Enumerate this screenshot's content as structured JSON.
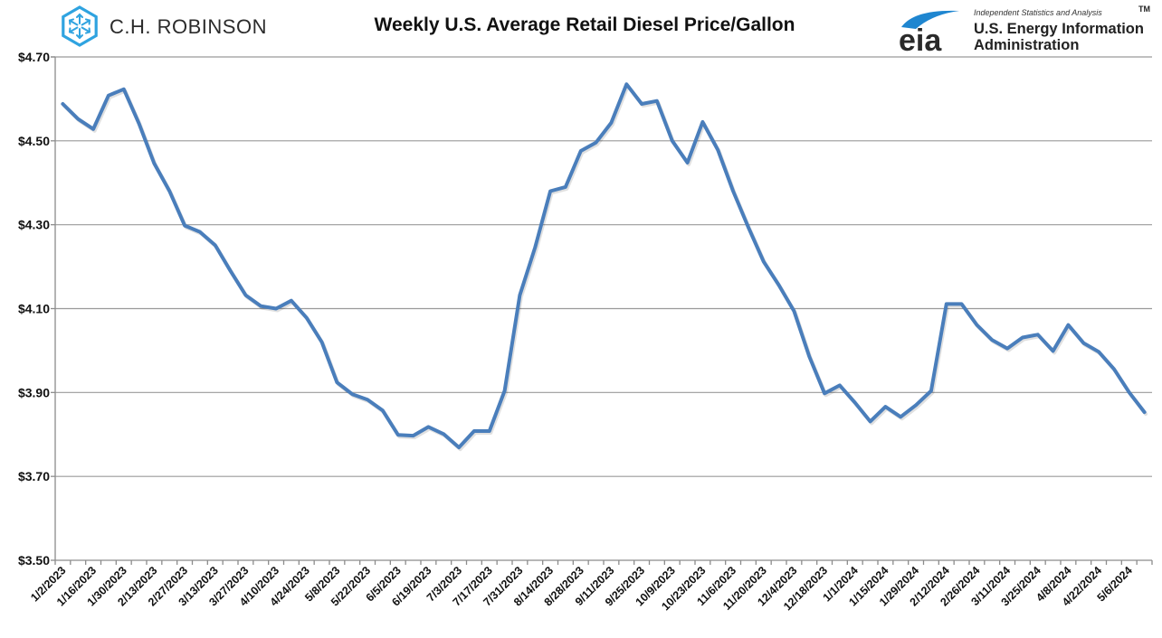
{
  "branding": {
    "left_logo_text": "C.H. ROBINSON",
    "left_logo_icon": "hexagon-arrows-icon",
    "left_logo_color": "#2fa3e0",
    "right_logo_mark": "eia",
    "right_logo_tagline": "Independent Statistics and Analysis",
    "right_logo_line1": "U.S. Energy Information",
    "right_logo_line2": "Administration",
    "right_logo_tm": "TM",
    "right_logo_arc_color": "#1f86d0"
  },
  "colors": {
    "series": "#4a7ebb",
    "grid": "#9a9a9a"
  },
  "chart_data": {
    "type": "line",
    "title": "Weekly U.S. Average Retail Diesel Price/Gallon",
    "xlabel": "",
    "ylabel": "",
    "ylim": [
      3.5,
      4.7
    ],
    "yticks": [
      3.5,
      3.7,
      3.9,
      4.1,
      4.3,
      4.5,
      4.7
    ],
    "ytick_labels": [
      "$3.50",
      "$3.70",
      "$3.90",
      "$4.10",
      "$4.30",
      "$4.50",
      "$4.70"
    ],
    "grid": true,
    "legend": "none",
    "x": [
      "1/2/2023",
      "1/9/2023",
      "1/16/2023",
      "1/23/2023",
      "1/30/2023",
      "2/6/2023",
      "2/13/2023",
      "2/20/2023",
      "2/27/2023",
      "3/6/2023",
      "3/13/2023",
      "3/20/2023",
      "3/27/2023",
      "4/3/2023",
      "4/10/2023",
      "4/17/2023",
      "4/24/2023",
      "5/1/2023",
      "5/8/2023",
      "5/15/2023",
      "5/22/2023",
      "5/29/2023",
      "6/5/2023",
      "6/12/2023",
      "6/19/2023",
      "6/26/2023",
      "7/3/2023",
      "7/10/2023",
      "7/17/2023",
      "7/24/2023",
      "7/31/2023",
      "8/7/2023",
      "8/14/2023",
      "8/21/2023",
      "8/28/2023",
      "9/4/2023",
      "9/11/2023",
      "9/18/2023",
      "9/25/2023",
      "10/2/2023",
      "10/9/2023",
      "10/16/2023",
      "10/23/2023",
      "10/30/2023",
      "11/6/2023",
      "11/13/2023",
      "11/20/2023",
      "11/27/2023",
      "12/4/2023",
      "12/11/2023",
      "12/18/2023",
      "12/25/2023",
      "1/1/2024",
      "1/8/2024",
      "1/15/2024",
      "1/22/2024",
      "1/29/2024",
      "2/5/2024",
      "2/12/2024",
      "2/19/2024",
      "2/26/2024",
      "3/4/2024",
      "3/11/2024",
      "3/18/2024",
      "3/25/2024",
      "4/1/2024",
      "4/8/2024",
      "4/15/2024",
      "4/22/2024",
      "4/29/2024",
      "5/6/2024",
      "5/13/2024"
    ],
    "xtick_labels": [
      "1/2/2023",
      "1/16/2023",
      "1/30/2023",
      "2/13/2023",
      "2/27/2023",
      "3/13/2023",
      "3/27/2023",
      "4/10/2023",
      "4/24/2023",
      "5/8/2023",
      "5/22/2023",
      "6/5/2023",
      "6/19/2023",
      "7/3/2023",
      "7/17/2023",
      "7/31/2023",
      "8/14/2023",
      "8/28/2023",
      "9/11/2023",
      "9/25/2023",
      "10/9/2023",
      "10/23/2023",
      "11/6/2023",
      "11/20/2023",
      "12/4/2023",
      "12/18/2023",
      "1/1/2024",
      "1/15/2024",
      "1/29/2024",
      "2/12/2024",
      "2/26/2024",
      "3/11/2024",
      "3/25/2024",
      "4/8/2024",
      "4/22/2024",
      "5/6/2024"
    ],
    "series": [
      {
        "name": "Weekly U.S. Average Retail Diesel Price",
        "values": [
          4.588,
          4.552,
          4.528,
          4.608,
          4.623,
          4.541,
          4.446,
          4.38,
          4.298,
          4.283,
          4.251,
          4.19,
          4.132,
          4.106,
          4.1,
          4.119,
          4.078,
          4.02,
          3.924,
          3.896,
          3.883,
          3.857,
          3.799,
          3.797,
          3.818,
          3.801,
          3.769,
          3.808,
          3.808,
          3.904,
          4.132,
          4.246,
          4.38,
          4.39,
          4.476,
          4.496,
          4.543,
          4.635,
          4.588,
          4.595,
          4.5,
          4.448,
          4.545,
          4.478,
          4.38,
          4.294,
          4.212,
          4.156,
          4.094,
          3.986,
          3.898,
          3.917,
          3.876,
          3.831,
          3.866,
          3.842,
          3.87,
          3.904,
          4.111,
          4.111,
          4.061,
          4.025,
          4.005,
          4.031,
          4.038,
          3.999,
          4.061,
          4.018,
          3.997,
          3.956,
          3.9,
          3.853
        ]
      }
    ]
  }
}
